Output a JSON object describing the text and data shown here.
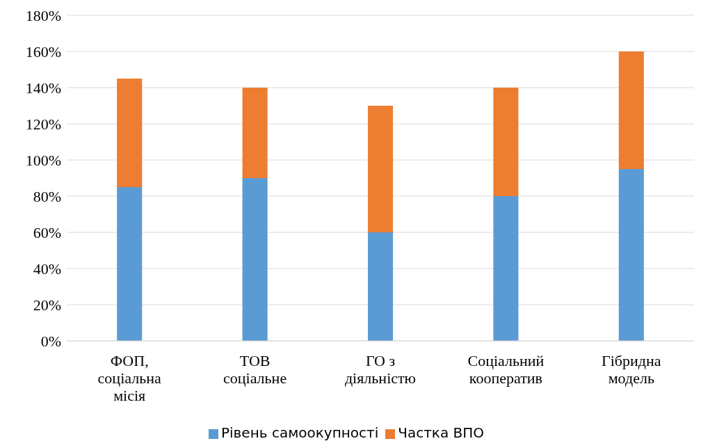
{
  "chart_data": {
    "type": "bar",
    "stacked": true,
    "categories": [
      "ФОП, соціальна місія",
      "ТОВ соціальне",
      "ГО з діяльністю",
      "Соціальний кооператив",
      "Гібридна модель"
    ],
    "series": [
      {
        "name": "Рівень самоокупності",
        "color": "#5b9bd5",
        "values": [
          85,
          90,
          60,
          80,
          95
        ]
      },
      {
        "name": "Частка ВПО",
        "color": "#ed7d31",
        "values": [
          60,
          50,
          70,
          60,
          65
        ]
      }
    ],
    "ylim": [
      0,
      180
    ],
    "yticks": [
      {
        "value": 0,
        "label": "0%"
      },
      {
        "value": 20,
        "label": "20%"
      },
      {
        "value": 40,
        "label": "40%"
      },
      {
        "value": 60,
        "label": "60%"
      },
      {
        "value": 80,
        "label": "80%"
      },
      {
        "value": 100,
        "label": "100%"
      },
      {
        "value": 120,
        "label": "120%"
      },
      {
        "value": 140,
        "label": "140%"
      },
      {
        "value": 160,
        "label": "160%"
      },
      {
        "value": 180,
        "label": "180%"
      }
    ],
    "grid": "y",
    "legend": "bottom"
  }
}
